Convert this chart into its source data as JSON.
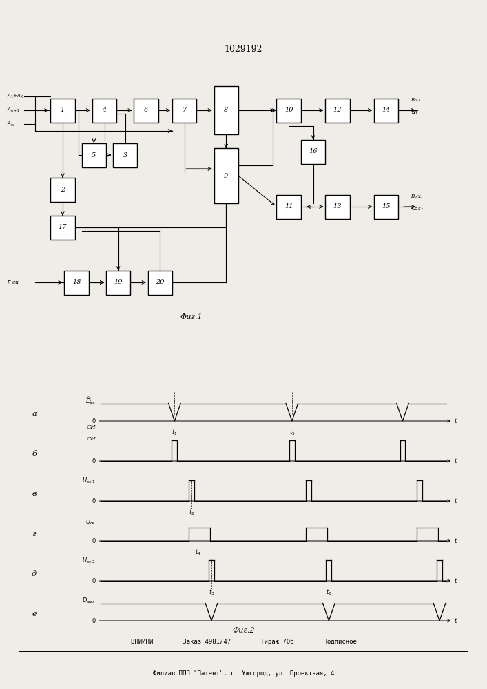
{
  "title": "1029192",
  "fig1_caption": "Фиг.1",
  "fig2_caption": "Фиг.2",
  "footer_line1": "ВНИИПИ        Заказ 4981/47        Тираж 706        Подписное",
  "footer_line2": "Филиал ППП \"Патент\", г. Ужгород, ул. Проектная, 4",
  "bg_color": "#f0ede8"
}
